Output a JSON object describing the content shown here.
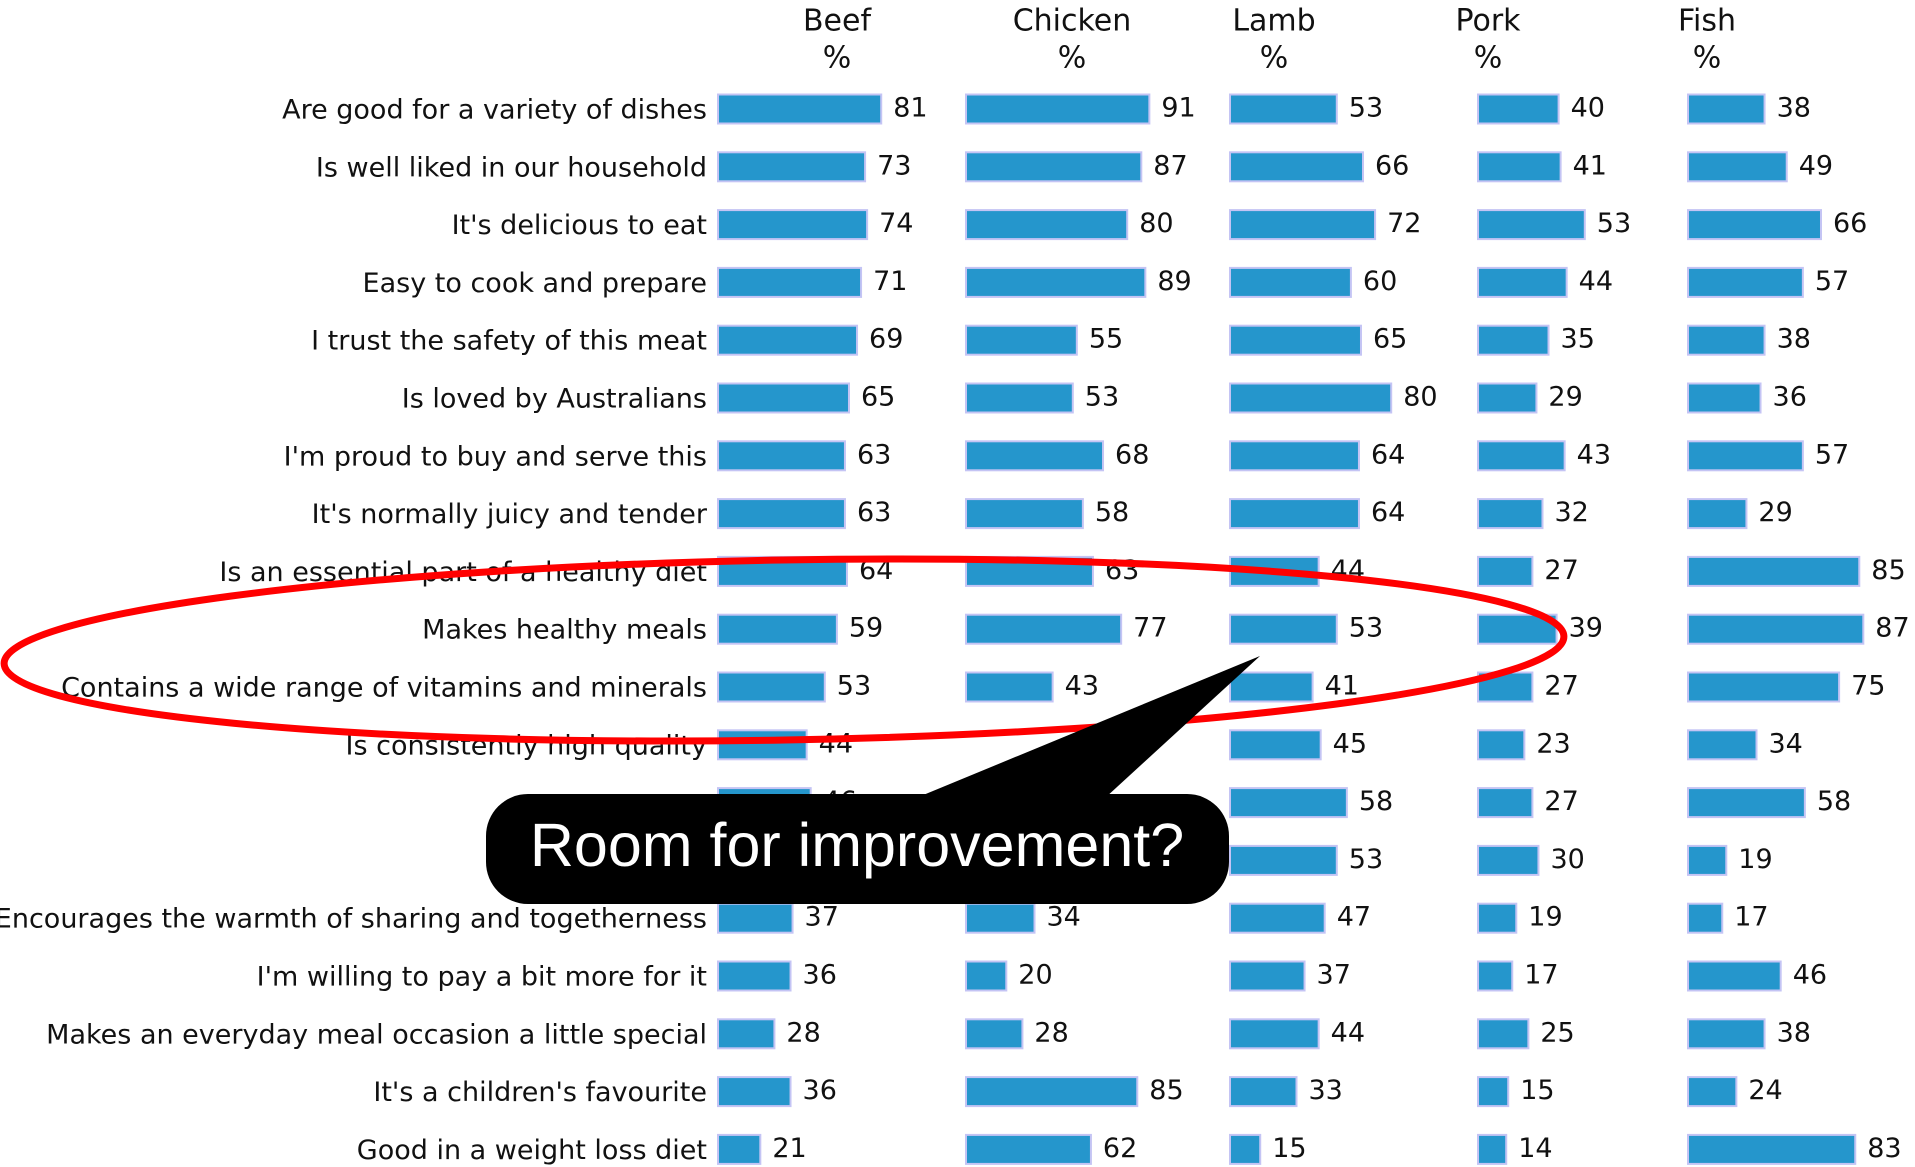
{
  "chart_data": {
    "type": "bar",
    "orientation": "horizontal",
    "unit": "%",
    "categories": [
      "Are good for a variety of dishes",
      "Is well liked in our household",
      "It's delicious to eat",
      "Easy to cook and prepare",
      "I trust the safety of this meat",
      "Is loved by Australians",
      "I'm proud to buy and serve this",
      "It's normally juicy and tender",
      "Is an essential part of a healthy diet",
      "Makes healthy meals",
      "Contains a wide range of vitamins and minerals",
      "Is consistently high quality",
      null,
      null,
      "Encourages the warmth of sharing and togetherness",
      "I'm willing to pay a bit more for it",
      "Makes an everyday meal occasion a little special",
      "It's a children's favourite",
      "Good in a weight loss diet"
    ],
    "series": [
      {
        "name": "Beef",
        "color": "#2596cc",
        "values": [
          81,
          73,
          74,
          71,
          69,
          65,
          63,
          63,
          64,
          59,
          53,
          44,
          46,
          null,
          37,
          36,
          28,
          36,
          21
        ]
      },
      {
        "name": "Chicken",
        "color": "#2596cc",
        "values": [
          91,
          87,
          80,
          89,
          55,
          53,
          68,
          58,
          63,
          77,
          43,
          null,
          null,
          null,
          34,
          20,
          28,
          85,
          62
        ]
      },
      {
        "name": "Lamb",
        "color": "#2596cc",
        "values": [
          53,
          66,
          72,
          60,
          65,
          80,
          64,
          64,
          44,
          53,
          41,
          45,
          58,
          53,
          47,
          37,
          44,
          33,
          15
        ]
      },
      {
        "name": "Pork",
        "color": "#2596cc",
        "values": [
          40,
          41,
          53,
          44,
          35,
          29,
          43,
          32,
          27,
          39,
          27,
          23,
          27,
          30,
          19,
          17,
          25,
          15,
          14
        ]
      },
      {
        "name": "Fish",
        "color": "#2596cc",
        "values": [
          38,
          49,
          66,
          57,
          38,
          36,
          57,
          29,
          85,
          87,
          75,
          34,
          58,
          19,
          17,
          46,
          38,
          24,
          83
        ]
      }
    ],
    "annotation": "Room for improvement?"
  }
}
